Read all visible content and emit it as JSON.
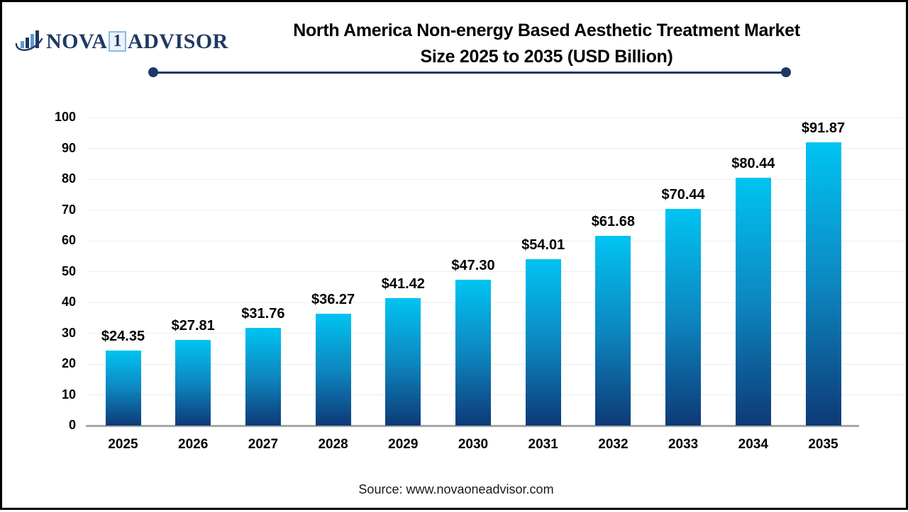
{
  "logo": {
    "icon": "bar-chart-swoosh-icon",
    "name": "NOVA",
    "one": "1",
    "suffix": "ADVISOR",
    "navy": "#1f3864",
    "light_blue": "#5b9bd5"
  },
  "title": {
    "line1": "North America Non-energy Based Aesthetic Treatment Market",
    "line2": "Size 2025 to 2035  (USD Billion)"
  },
  "source": "Source: www.novaoneadvisor.com",
  "chart_data": {
    "type": "bar",
    "title": "North America Non-energy Based Aesthetic Treatment Market Size 2025 to 2035 (USD Billion)",
    "categories": [
      "2025",
      "2026",
      "2027",
      "2028",
      "2029",
      "2030",
      "2031",
      "2032",
      "2033",
      "2034",
      "2035"
    ],
    "values": [
      24.35,
      27.81,
      31.76,
      36.27,
      41.42,
      47.3,
      54.01,
      61.68,
      70.44,
      80.44,
      91.87
    ],
    "value_labels": [
      "$24.35",
      "$27.81",
      "$31.76",
      "$36.27",
      "$41.42",
      "$47.30",
      "$54.01",
      "$61.68",
      "$70.44",
      "$80.44",
      "$91.87"
    ],
    "xlabel": "",
    "ylabel": "",
    "ylim": [
      0,
      100
    ],
    "yticks": [
      0,
      10,
      20,
      30,
      40,
      50,
      60,
      70,
      80,
      90,
      100
    ],
    "grid": true,
    "legend": false,
    "bar_gradient_top": "#00c4f2",
    "bar_gradient_bottom": "#0d3a77",
    "gridline_color": "#ededed",
    "axis_line_color": "#a6a6a6"
  }
}
